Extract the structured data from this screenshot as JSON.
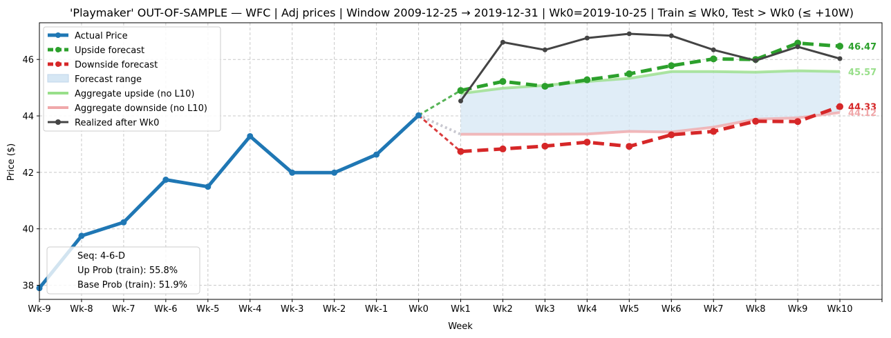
{
  "chart_data": {
    "type": "line",
    "title": "'Playmaker' OUT-OF-SAMPLE — WFC  |  Adj prices  |  Window 2009-12-25 → 2019-12-31  |  Wk0=2019-10-25  |  Train ≤ Wk0, Test > Wk0 (≤ +10W)",
    "xlabel": "Week",
    "ylabel": "Price ($)",
    "ylim": [
      37.5,
      47.3
    ],
    "yticks": [
      38,
      40,
      42,
      44,
      46
    ],
    "categories": [
      "Wk-9",
      "Wk-8",
      "Wk-7",
      "Wk-6",
      "Wk-5",
      "Wk-4",
      "Wk-3",
      "Wk-2",
      "Wk-1",
      "Wk0",
      "Wk1",
      "Wk2",
      "Wk3",
      "Wk4",
      "Wk5",
      "Wk6",
      "Wk7",
      "Wk8",
      "Wk9",
      "Wk10"
    ],
    "grid": true,
    "legend_position": "top-left",
    "series": [
      {
        "name": "Actual Price",
        "color": "#1f77b4",
        "style": "solid",
        "x": [
          "Wk-9",
          "Wk-8",
          "Wk-7",
          "Wk-6",
          "Wk-5",
          "Wk-4",
          "Wk-3",
          "Wk-2",
          "Wk-1",
          "Wk0"
        ],
        "values": [
          37.9,
          39.75,
          40.23,
          41.74,
          41.49,
          43.28,
          41.99,
          41.99,
          42.63,
          44.02
        ]
      },
      {
        "name": "Upside forecast",
        "color": "#2ca02c",
        "style": "dashed",
        "x": [
          "Wk1",
          "Wk2",
          "Wk3",
          "Wk4",
          "Wk5",
          "Wk6",
          "Wk7",
          "Wk8",
          "Wk9",
          "Wk10"
        ],
        "values": [
          44.9,
          45.22,
          45.05,
          45.28,
          45.49,
          45.78,
          46.02,
          46.0,
          46.58,
          46.47
        ]
      },
      {
        "name": "Downside forecast",
        "color": "#d62728",
        "style": "dashed",
        "x": [
          "Wk1",
          "Wk2",
          "Wk3",
          "Wk4",
          "Wk5",
          "Wk6",
          "Wk7",
          "Wk8",
          "Wk9",
          "Wk10"
        ],
        "values": [
          42.74,
          42.83,
          42.93,
          43.07,
          42.92,
          43.33,
          43.45,
          43.81,
          43.8,
          44.33
        ]
      },
      {
        "name": "Aggregate upside (no L10)",
        "color": "#98df8a",
        "style": "solid",
        "x": [
          "Wk1",
          "Wk2",
          "Wk3",
          "Wk4",
          "Wk5",
          "Wk6",
          "Wk7",
          "Wk8",
          "Wk9",
          "Wk10"
        ],
        "values": [
          44.79,
          44.98,
          45.08,
          45.22,
          45.33,
          45.57,
          45.57,
          45.55,
          45.6,
          45.57
        ]
      },
      {
        "name": "Aggregate downside (no L10)",
        "color": "#f0a8aa",
        "style": "solid",
        "x": [
          "Wk1",
          "Wk2",
          "Wk3",
          "Wk4",
          "Wk5",
          "Wk6",
          "Wk7",
          "Wk8",
          "Wk9",
          "Wk10"
        ],
        "values": [
          43.35,
          43.35,
          43.35,
          43.36,
          43.45,
          43.43,
          43.6,
          43.88,
          43.93,
          44.12
        ]
      },
      {
        "name": "Realized after Wk0",
        "color": "#444444",
        "style": "solid",
        "x": [
          "Wk1",
          "Wk2",
          "Wk3",
          "Wk4",
          "Wk5",
          "Wk6",
          "Wk7",
          "Wk8",
          "Wk9",
          "Wk10"
        ],
        "values": [
          44.53,
          46.61,
          46.34,
          46.76,
          46.91,
          46.84,
          46.34,
          45.96,
          46.45,
          46.03
        ]
      }
    ],
    "forecast_range_label": "Forecast range",
    "end_labels": [
      {
        "text": "46.47",
        "color": "#2ca02c",
        "value": 46.47
      },
      {
        "text": "45.57",
        "color": "#98df8a",
        "value": 45.57
      },
      {
        "text": "44.33",
        "color": "#d62728",
        "value": 44.33
      },
      {
        "text": "44.12",
        "color": "#f0a8aa",
        "value": 44.12
      }
    ],
    "info_box": [
      "Seq: 4-6-D",
      "Up Prob (train): 55.8%",
      "Base Prob (train): 51.9%"
    ]
  }
}
